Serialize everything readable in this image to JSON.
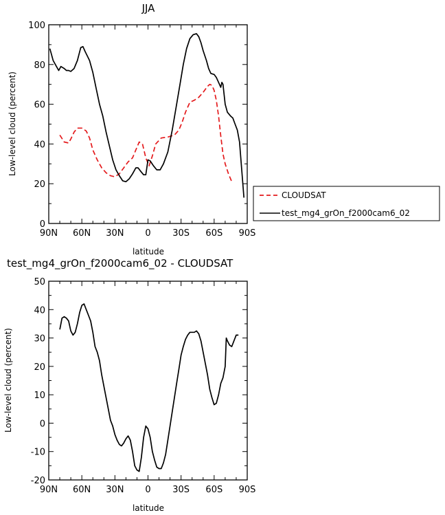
{
  "chart_data": [
    {
      "type": "line",
      "title": "JJA",
      "xlabel": "latitude",
      "ylabel": "Low-level cloud (percent)",
      "xlim": [
        90,
        -90
      ],
      "ylim": [
        0,
        100
      ],
      "xticks": [
        90,
        60,
        30,
        0,
        -30,
        -60,
        -90
      ],
      "xticklabels": [
        "90N",
        "60N",
        "30N",
        "0",
        "30S",
        "60S",
        "90S"
      ],
      "yticks": [
        0,
        20,
        40,
        60,
        80,
        100
      ],
      "yticklabels": [
        "0",
        "20",
        "40",
        "60",
        "80",
        "100"
      ],
      "legend": "right",
      "series": [
        {
          "name": "CLOUDSAT",
          "color": "#e41a1c",
          "dash": "dashed",
          "points": [
            [
              80,
              44.5
            ],
            [
              76,
              41
            ],
            [
              72,
              40.5
            ],
            [
              70,
              42.5
            ],
            [
              67,
              46
            ],
            [
              64,
              48
            ],
            [
              60,
              48
            ],
            [
              56,
              46.5
            ],
            [
              53,
              43
            ],
            [
              50,
              37
            ],
            [
              46,
              32
            ],
            [
              42,
              28
            ],
            [
              38,
              25.5
            ],
            [
              34,
              24
            ],
            [
              30,
              23.5
            ],
            [
              26,
              25
            ],
            [
              22,
              28
            ],
            [
              18,
              31
            ],
            [
              14,
              33
            ],
            [
              11,
              37
            ],
            [
              8,
              41
            ],
            [
              5,
              40
            ],
            [
              2,
              33
            ],
            [
              -1,
              29
            ],
            [
              -4,
              34
            ],
            [
              -7,
              40
            ],
            [
              -12,
              43
            ],
            [
              -18,
              43.5
            ],
            [
              -24,
              44.5
            ],
            [
              -28,
              47
            ],
            [
              -31,
              51
            ],
            [
              -34,
              56
            ],
            [
              -38,
              61
            ],
            [
              -42,
              62
            ],
            [
              -46,
              63.5
            ],
            [
              -50,
              66
            ],
            [
              -54,
              69
            ],
            [
              -56,
              70
            ],
            [
              -58,
              69.5
            ],
            [
              -60,
              67
            ],
            [
              -62,
              62
            ],
            [
              -64,
              54
            ],
            [
              -66,
              44
            ],
            [
              -68,
              35
            ],
            [
              -70,
              30
            ],
            [
              -73,
              25
            ],
            [
              -76,
              21
            ]
          ]
        },
        {
          "name": "test_mg4_grOn_f2000cam6_02",
          "color": "#000000",
          "dash": "solid",
          "points": [
            [
              89,
              88
            ],
            [
              86,
              82
            ],
            [
              83,
              79
            ],
            [
              81,
              77
            ],
            [
              79,
              79
            ],
            [
              76,
              78
            ],
            [
              74,
              77
            ],
            [
              72,
              77
            ],
            [
              70,
              76.5
            ],
            [
              67,
              78
            ],
            [
              64,
              82
            ],
            [
              61,
              88.5
            ],
            [
              59,
              89
            ],
            [
              57,
              86.5
            ],
            [
              53,
              82
            ],
            [
              50,
              76
            ],
            [
              47,
              68
            ],
            [
              44,
              60
            ],
            [
              41,
              54
            ],
            [
              38,
              46
            ],
            [
              35,
              39
            ],
            [
              32,
              32
            ],
            [
              29,
              27
            ],
            [
              26,
              24
            ],
            [
              23,
              21.5
            ],
            [
              20,
              21
            ],
            [
              17,
              22.5
            ],
            [
              14,
              25
            ],
            [
              11,
              28
            ],
            [
              9,
              28
            ],
            [
              7,
              26.5
            ],
            [
              4,
              24.5
            ],
            [
              2,
              24.5
            ],
            [
              0,
              32
            ],
            [
              -2,
              31.5
            ],
            [
              -5,
              29
            ],
            [
              -8,
              27
            ],
            [
              -11,
              27
            ],
            [
              -14,
              30
            ],
            [
              -18,
              36
            ],
            [
              -22,
              47
            ],
            [
              -26,
              60
            ],
            [
              -29,
              70
            ],
            [
              -32,
              80
            ],
            [
              -35,
              88
            ],
            [
              -38,
              93
            ],
            [
              -41,
              95
            ],
            [
              -44,
              95.5
            ],
            [
              -46,
              94
            ],
            [
              -48,
              91
            ],
            [
              -50,
              87
            ],
            [
              -53,
              82
            ],
            [
              -55,
              78
            ],
            [
              -57,
              75.5
            ],
            [
              -60,
              75
            ],
            [
              -62,
              73.5
            ],
            [
              -64,
              71
            ],
            [
              -66,
              68.5
            ],
            [
              -67,
              71
            ],
            [
              -68,
              70
            ],
            [
              -70,
              60
            ],
            [
              -72,
              56
            ],
            [
              -75,
              54
            ],
            [
              -77,
              53
            ],
            [
              -79,
              50
            ],
            [
              -81,
              47
            ],
            [
              -83,
              41
            ],
            [
              -85,
              27
            ],
            [
              -87,
              13
            ]
          ]
        }
      ]
    },
    {
      "type": "line",
      "title": "test_mg4_grOn_f2000cam6_02 - CLOUDSAT",
      "xlabel": "latitude",
      "ylabel": "Low-level cloud (percent)",
      "xlim": [
        90,
        -90
      ],
      "ylim": [
        -20,
        50
      ],
      "xticks": [
        90,
        60,
        30,
        0,
        -30,
        -60,
        -90
      ],
      "xticklabels": [
        "90N",
        "60N",
        "30N",
        "0",
        "30S",
        "60S",
        "90S"
      ],
      "yticks": [
        -20,
        -10,
        0,
        10,
        20,
        30,
        40,
        50
      ],
      "yticklabels": [
        "-20",
        "-10",
        "0",
        "10",
        "20",
        "30",
        "40",
        "50"
      ],
      "series": [
        {
          "color": "#000000",
          "dash": "solid",
          "points": [
            [
              80,
              33
            ],
            [
              78,
              37
            ],
            [
              76,
              37.5
            ],
            [
              74,
              37
            ],
            [
              72,
              36
            ],
            [
              70,
              32.5
            ],
            [
              68,
              31
            ],
            [
              66,
              32
            ],
            [
              64,
              35
            ],
            [
              62,
              39
            ],
            [
              60,
              41.5
            ],
            [
              58,
              42
            ],
            [
              56,
              40
            ],
            [
              54,
              38
            ],
            [
              52,
              36
            ],
            [
              50,
              32
            ],
            [
              48,
              27
            ],
            [
              46,
              25
            ],
            [
              44,
              22
            ],
            [
              42,
              17
            ],
            [
              40,
              13
            ],
            [
              38,
              9
            ],
            [
              36,
              5
            ],
            [
              34,
              1
            ],
            [
              32,
              -1
            ],
            [
              30,
              -4
            ],
            [
              28,
              -6
            ],
            [
              26,
              -7.5
            ],
            [
              24,
              -8
            ],
            [
              22,
              -7
            ],
            [
              20,
              -5.5
            ],
            [
              18,
              -4.5
            ],
            [
              16,
              -6
            ],
            [
              14,
              -10
            ],
            [
              12,
              -15
            ],
            [
              10,
              -16.5
            ],
            [
              8,
              -17
            ],
            [
              6,
              -12
            ],
            [
              4,
              -5
            ],
            [
              2,
              -1
            ],
            [
              0,
              -2
            ],
            [
              -2,
              -5
            ],
            [
              -4,
              -10
            ],
            [
              -6,
              -13
            ],
            [
              -8,
              -15.5
            ],
            [
              -10,
              -16
            ],
            [
              -12,
              -16
            ],
            [
              -14,
              -14
            ],
            [
              -16,
              -11
            ],
            [
              -18,
              -6
            ],
            [
              -20,
              -1
            ],
            [
              -22,
              4
            ],
            [
              -24,
              9
            ],
            [
              -26,
              14
            ],
            [
              -28,
              19
            ],
            [
              -30,
              24
            ],
            [
              -32,
              27
            ],
            [
              -34,
              29.5
            ],
            [
              -36,
              31
            ],
            [
              -38,
              32
            ],
            [
              -40,
              32
            ],
            [
              -42,
              32
            ],
            [
              -44,
              32.5
            ],
            [
              -46,
              31.5
            ],
            [
              -48,
              29
            ],
            [
              -50,
              25
            ],
            [
              -52,
              21
            ],
            [
              -54,
              17
            ],
            [
              -56,
              12
            ],
            [
              -58,
              9
            ],
            [
              -60,
              6.5
            ],
            [
              -62,
              7
            ],
            [
              -64,
              10
            ],
            [
              -66,
              14
            ],
            [
              -68,
              16
            ],
            [
              -70,
              20
            ],
            [
              -71,
              30
            ],
            [
              -72,
              29
            ],
            [
              -74,
              27.5
            ],
            [
              -76,
              27
            ],
            [
              -78,
              29
            ],
            [
              -80,
              31
            ],
            [
              -82,
              31
            ]
          ]
        }
      ]
    }
  ]
}
